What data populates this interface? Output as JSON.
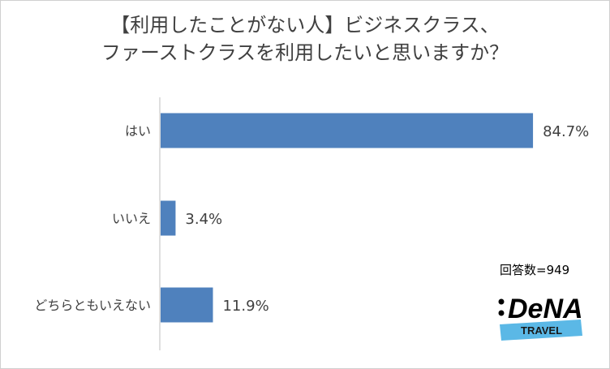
{
  "chart_data": {
    "type": "bar",
    "orientation": "horizontal",
    "title_lines": [
      "【利用したことがない人】ビジネスクラス、",
      "ファーストクラスを利用したいと思いますか？"
    ],
    "categories": [
      "はい",
      "いいえ",
      "どちらともいえない"
    ],
    "values": [
      84.7,
      3.4,
      11.9
    ],
    "value_labels": [
      "84.7%",
      "3.4%",
      "11.9%"
    ],
    "xlim": [
      0,
      100
    ],
    "bar_color": "#4f81bd",
    "grid": false,
    "legend": "none"
  },
  "annotations": {
    "respondents": "回答数=949"
  },
  "logo": {
    "brand": "DeNA",
    "sub": "TRAVEL",
    "band_color": "#5bb8e6"
  }
}
